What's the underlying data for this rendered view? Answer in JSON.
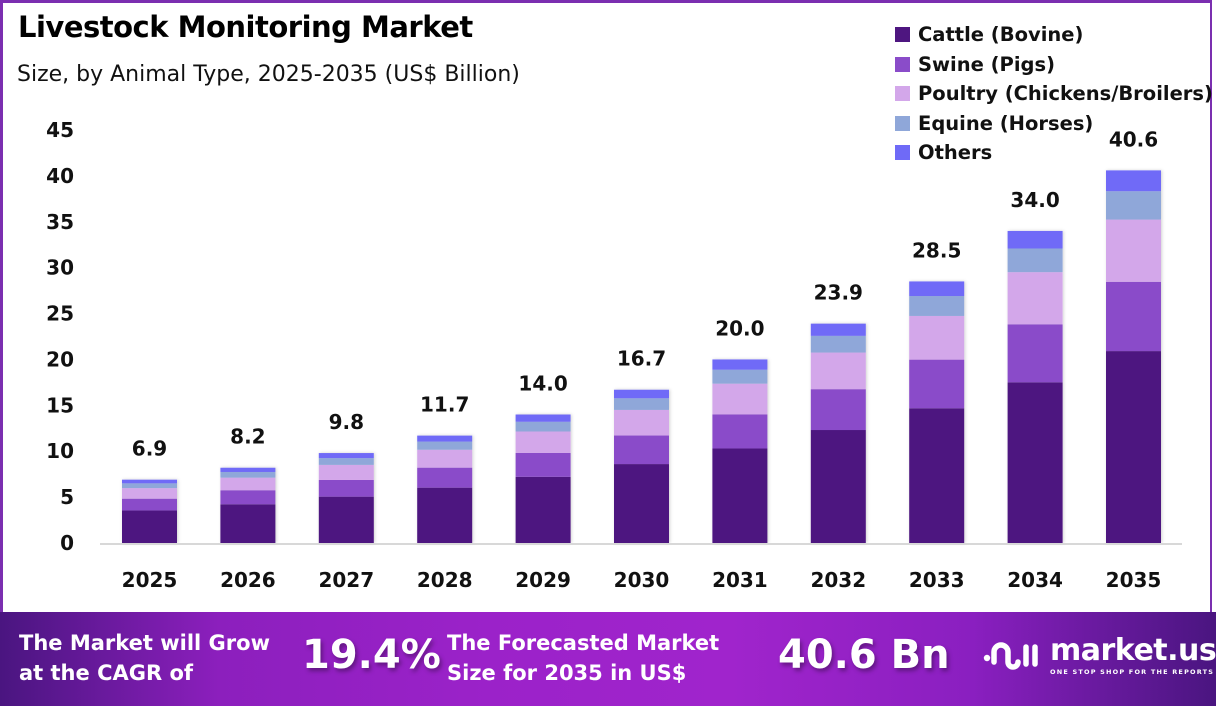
{
  "header": {
    "title": "Livestock Monitoring Market",
    "subtitle": "Size, by Animal Type, 2025-2035 (US$ Billion)"
  },
  "colors": {
    "cattle": "#4e1680",
    "swine": "#8a4cc9",
    "poultry": "#d3a7ea",
    "equine": "#8fa7d9",
    "others": "#6f6af7",
    "frame": "#7b2fb0"
  },
  "chart_data": {
    "type": "bar",
    "stacked": true,
    "title": "Livestock Monitoring Market",
    "subtitle": "Size, by Animal Type, 2025-2035 (US$ Billion)",
    "xlabel": "",
    "ylabel": "",
    "ylim": [
      0,
      45
    ],
    "yticks": [
      0,
      5,
      10,
      15,
      20,
      25,
      30,
      35,
      40,
      45
    ],
    "grid": false,
    "legend_position": "top-right",
    "categories": [
      "2025",
      "2026",
      "2027",
      "2028",
      "2029",
      "2030",
      "2031",
      "2032",
      "2033",
      "2034",
      "2035"
    ],
    "totals": [
      6.9,
      8.2,
      9.8,
      11.7,
      14.0,
      16.7,
      20.0,
      23.9,
      28.5,
      34.0,
      40.6
    ],
    "total_labels": [
      "6.9",
      "8.2",
      "9.8",
      "11.7",
      "14.0",
      "16.7",
      "20.0",
      "23.9",
      "28.5",
      "34.0",
      "40.6"
    ],
    "series": [
      {
        "name": "Cattle (Bovine)",
        "key": "cattle",
        "values": [
          3.55,
          4.22,
          5.05,
          6.03,
          7.21,
          8.6,
          10.3,
          12.31,
          14.68,
          17.51,
          20.91
        ]
      },
      {
        "name": "Swine (Pigs)",
        "key": "swine",
        "values": [
          1.28,
          1.53,
          1.82,
          2.18,
          2.6,
          3.11,
          3.72,
          4.45,
          5.3,
          6.32,
          7.55
        ]
      },
      {
        "name": "Poultry (Chickens/Broilers)",
        "key": "poultry",
        "values": [
          1.15,
          1.37,
          1.64,
          1.95,
          2.34,
          2.79,
          3.34,
          3.99,
          4.76,
          5.68,
          6.78
        ]
      },
      {
        "name": "Equine (Horses)",
        "key": "equine",
        "values": [
          0.52,
          0.62,
          0.74,
          0.89,
          1.06,
          1.27,
          1.52,
          1.82,
          2.17,
          2.58,
          3.09
        ]
      },
      {
        "name": "Others",
        "key": "others",
        "values": [
          0.4,
          0.46,
          0.55,
          0.65,
          0.79,
          0.93,
          1.12,
          1.33,
          1.59,
          1.91,
          2.27
        ]
      }
    ]
  },
  "footer": {
    "cagr_text_line1": "The Market will Grow",
    "cagr_text_line2": "at the CAGR of",
    "cagr_value": "19.4%",
    "forecast_text_line1": "The Forecasted Market",
    "forecast_text_line2": "Size for 2035 in US$",
    "forecast_value": "40.6 Bn",
    "logo_name": "market.us",
    "logo_tagline": "ONE STOP SHOP FOR THE REPORTS"
  }
}
